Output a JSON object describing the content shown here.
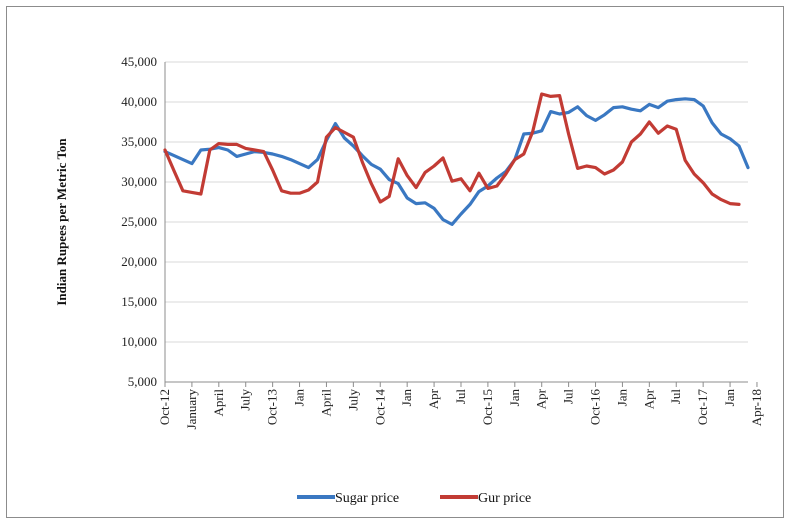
{
  "chart_data": {
    "type": "line",
    "title": "",
    "xlabel": "",
    "ylabel": "Indian Rupees per Metric Ton",
    "ylim": [
      5000,
      45000
    ],
    "yticks": [
      "5,000",
      "10,000",
      "15,000",
      "20,000",
      "25,000",
      "30,000",
      "35,000",
      "40,000",
      "45,000"
    ],
    "ytick_values": [
      5000,
      10000,
      15000,
      20000,
      25000,
      30000,
      35000,
      40000,
      45000
    ],
    "x_tick_labels": [
      {
        "index": 0,
        "label": "Oct-12"
      },
      {
        "index": 3,
        "label": "January"
      },
      {
        "index": 6,
        "label": "April"
      },
      {
        "index": 9,
        "label": "July"
      },
      {
        "index": 12,
        "label": "Oct-13"
      },
      {
        "index": 15,
        "label": "Jan"
      },
      {
        "index": 18,
        "label": "April"
      },
      {
        "index": 21,
        "label": "July"
      },
      {
        "index": 24,
        "label": "Oct-14"
      },
      {
        "index": 27,
        "label": "Jan"
      },
      {
        "index": 30,
        "label": "Apr"
      },
      {
        "index": 33,
        "label": "Jul"
      },
      {
        "index": 36,
        "label": "Oct-15"
      },
      {
        "index": 39,
        "label": "Jan"
      },
      {
        "index": 42,
        "label": "Apr"
      },
      {
        "index": 45,
        "label": "Jul"
      },
      {
        "index": 48,
        "label": "Oct-16"
      },
      {
        "index": 51,
        "label": "Jan"
      },
      {
        "index": 54,
        "label": "Apr"
      },
      {
        "index": 57,
        "label": "Jul"
      },
      {
        "index": 60,
        "label": "Oct-17"
      },
      {
        "index": 63,
        "label": "Jan"
      },
      {
        "index": 66,
        "label": "Apr-18"
      }
    ],
    "series": [
      {
        "name": "Sugar price",
        "color": "#3a78c2",
        "values": [
          33800,
          33300,
          32800,
          32300,
          34000,
          34100,
          34300,
          34000,
          33200,
          33500,
          33800,
          33700,
          33500,
          33200,
          32800,
          32300,
          31800,
          32800,
          35200,
          37300,
          35500,
          34500,
          33300,
          32200,
          31600,
          30300,
          29800,
          28000,
          27300,
          27400,
          26700,
          25300,
          24700,
          26000,
          27200,
          28800,
          29500,
          30500,
          31300,
          32800,
          36000,
          36100,
          36400,
          38800,
          38500,
          38700,
          39400,
          38300,
          37700,
          38400,
          39300,
          39400,
          39100,
          38900,
          39700,
          39300,
          40100,
          40300,
          40400,
          40300,
          39500,
          37400,
          36000,
          35400,
          34500,
          31800
        ]
      },
      {
        "name": "Gur price",
        "color": "#c23b34",
        "values": [
          34000,
          31400,
          28900,
          28700,
          28500,
          34000,
          34800,
          34700,
          34700,
          34200,
          34000,
          33800,
          31500,
          28900,
          28600,
          28600,
          29000,
          30000,
          35600,
          36800,
          36200,
          35600,
          32500,
          29800,
          27500,
          28200,
          32900,
          30800,
          29300,
          31200,
          32000,
          33000,
          30100,
          30400,
          28900,
          31100,
          29200,
          29500,
          31000,
          32800,
          33500,
          36300,
          41000,
          40700,
          40800,
          36000,
          31700,
          32000,
          31800,
          31000,
          31500,
          32500,
          35000,
          36000,
          37500,
          36100,
          37000,
          36600,
          32700,
          31000,
          29900,
          28500,
          27800,
          27300,
          27200
        ]
      }
    ],
    "grid": true,
    "legend": {
      "position": "bottom",
      "entries": [
        "Sugar price",
        "Gur price"
      ]
    }
  }
}
